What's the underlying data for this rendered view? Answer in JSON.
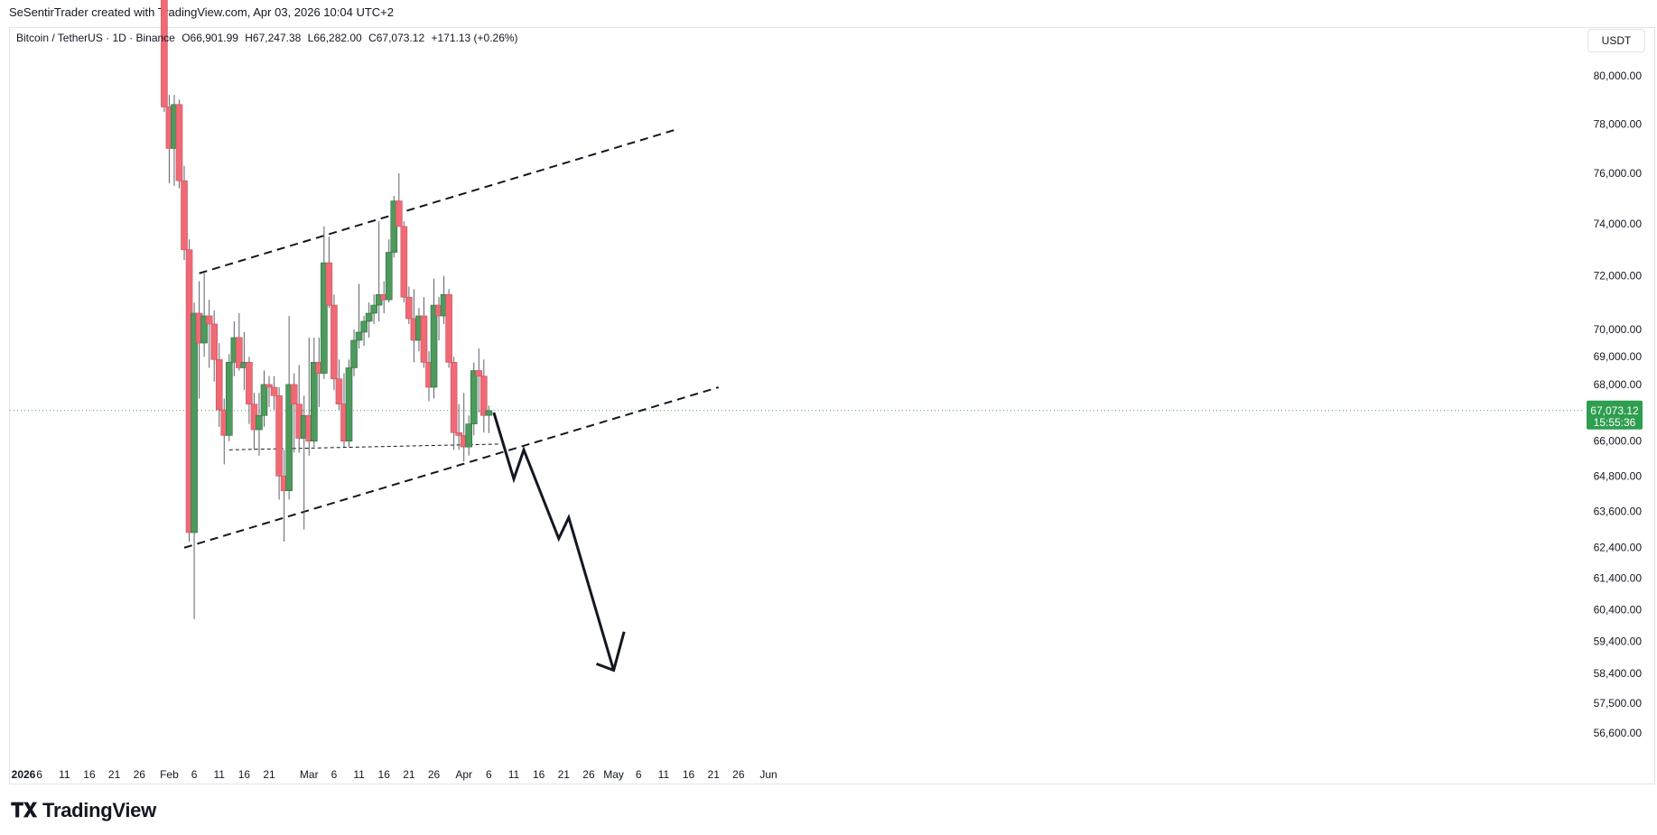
{
  "header": {
    "credit": "SeSentirTrader created with TradingView.com, Apr 03, 2026 10:04 UTC+2"
  },
  "legend": {
    "symbol": "Bitcoin / TetherUS · 1D · Binance",
    "open": "O66,901.99",
    "high": "H67,247.38",
    "low": "L66,282.00",
    "close": "C67,073.12",
    "change": "+171.13 (+0.26%)"
  },
  "currency": "USDT",
  "price_badge": {
    "price": "67,073.12",
    "countdown": "15:55:36"
  },
  "colors": {
    "up": "#4c9a5c",
    "down": "#f06a76",
    "wick": "#5d606b",
    "badge": "#2e9e4f"
  },
  "footer": {
    "logo": "TradingView"
  },
  "chart_data": {
    "type": "candlestick",
    "y_scale": "log",
    "y_range": [
      55800,
      84000
    ],
    "y_ticks": [
      "80,000.00",
      "78,000.00",
      "76,000.00",
      "74,000.00",
      "72,000.00",
      "70,000.00",
      "69,000.00",
      "68,000.00",
      "66,000.00",
      "64,800.00",
      "63,600.00",
      "62,400.00",
      "61,400.00",
      "60,400.00",
      "59,400.00",
      "58,400.00",
      "57,500.00",
      "56,600.00"
    ],
    "x_ticks": [
      {
        "label": "2026",
        "date": "2026-01-01"
      },
      {
        "label": "6",
        "date": "2026-01-06"
      },
      {
        "label": "11",
        "date": "2026-01-11"
      },
      {
        "label": "16",
        "date": "2026-01-16"
      },
      {
        "label": "21",
        "date": "2026-01-21"
      },
      {
        "label": "26",
        "date": "2026-01-26"
      },
      {
        "label": "Feb",
        "date": "2026-02-01"
      },
      {
        "label": "6",
        "date": "2026-02-06"
      },
      {
        "label": "11",
        "date": "2026-02-11"
      },
      {
        "label": "16",
        "date": "2026-02-16"
      },
      {
        "label": "21",
        "date": "2026-02-21"
      },
      {
        "label": "Mar",
        "date": "2026-03-01"
      },
      {
        "label": "6",
        "date": "2026-03-06"
      },
      {
        "label": "11",
        "date": "2026-03-11"
      },
      {
        "label": "16",
        "date": "2026-03-16"
      },
      {
        "label": "21",
        "date": "2026-03-21"
      },
      {
        "label": "26",
        "date": "2026-03-26"
      },
      {
        "label": "Apr",
        "date": "2026-04-01"
      },
      {
        "label": "6",
        "date": "2026-04-06"
      },
      {
        "label": "11",
        "date": "2026-04-11"
      },
      {
        "label": "16",
        "date": "2026-04-16"
      },
      {
        "label": "21",
        "date": "2026-04-21"
      },
      {
        "label": "26",
        "date": "2026-04-26"
      },
      {
        "label": "May",
        "date": "2026-05-01"
      },
      {
        "label": "6",
        "date": "2026-05-06"
      },
      {
        "label": "11",
        "date": "2026-05-11"
      },
      {
        "label": "16",
        "date": "2026-05-16"
      },
      {
        "label": "21",
        "date": "2026-05-21"
      },
      {
        "label": "26",
        "date": "2026-05-26"
      },
      {
        "label": "Jun",
        "date": "2026-06-01"
      }
    ],
    "candles": [
      {
        "date": "2026-01-31",
        "o": 84500,
        "h": 85500,
        "l": 78500,
        "c": 78700
      },
      {
        "date": "2026-02-01",
        "o": 78700,
        "h": 79200,
        "l": 75600,
        "c": 77000
      },
      {
        "date": "2026-02-02",
        "o": 77000,
        "h": 79200,
        "l": 75500,
        "c": 78800
      },
      {
        "date": "2026-02-03",
        "o": 78800,
        "h": 79000,
        "l": 75400,
        "c": 75700
      },
      {
        "date": "2026-02-04",
        "o": 75700,
        "h": 76300,
        "l": 72600,
        "c": 73000
      },
      {
        "date": "2026-02-05",
        "o": 73000,
        "h": 73400,
        "l": 62600,
        "c": 62900
      },
      {
        "date": "2026-02-06",
        "o": 62900,
        "h": 71000,
        "l": 60100,
        "c": 70600
      },
      {
        "date": "2026-02-07",
        "o": 70600,
        "h": 71800,
        "l": 67500,
        "c": 69500
      },
      {
        "date": "2026-02-08",
        "o": 69500,
        "h": 72100,
        "l": 69000,
        "c": 70500
      },
      {
        "date": "2026-02-09",
        "o": 70500,
        "h": 71100,
        "l": 68600,
        "c": 70200
      },
      {
        "date": "2026-02-10",
        "o": 70200,
        "h": 70700,
        "l": 68100,
        "c": 68900
      },
      {
        "date": "2026-02-11",
        "o": 68900,
        "h": 69500,
        "l": 66500,
        "c": 67100
      },
      {
        "date": "2026-02-12",
        "o": 67100,
        "h": 67500,
        "l": 65200,
        "c": 66200
      },
      {
        "date": "2026-02-13",
        "o": 66200,
        "h": 69100,
        "l": 66000,
        "c": 68800
      },
      {
        "date": "2026-02-14",
        "o": 68800,
        "h": 70300,
        "l": 68300,
        "c": 69700
      },
      {
        "date": "2026-02-15",
        "o": 69700,
        "h": 70600,
        "l": 68500,
        "c": 68600
      },
      {
        "date": "2026-02-16",
        "o": 68600,
        "h": 69900,
        "l": 67800,
        "c": 68800
      },
      {
        "date": "2026-02-17",
        "o": 68800,
        "h": 69000,
        "l": 66600,
        "c": 67300
      },
      {
        "date": "2026-02-18",
        "o": 67300,
        "h": 67700,
        "l": 65700,
        "c": 66400
      },
      {
        "date": "2026-02-19",
        "o": 66400,
        "h": 67700,
        "l": 65500,
        "c": 66900
      },
      {
        "date": "2026-02-20",
        "o": 66900,
        "h": 68500,
        "l": 66500,
        "c": 68000
      },
      {
        "date": "2026-02-21",
        "o": 68000,
        "h": 68300,
        "l": 67200,
        "c": 67900
      },
      {
        "date": "2026-02-22",
        "o": 67900,
        "h": 68300,
        "l": 67100,
        "c": 67600
      },
      {
        "date": "2026-02-23",
        "o": 67600,
        "h": 67900,
        "l": 64000,
        "c": 64800
      },
      {
        "date": "2026-02-24",
        "o": 64800,
        "h": 65700,
        "l": 62600,
        "c": 64300
      },
      {
        "date": "2026-02-25",
        "o": 64300,
        "h": 70500,
        "l": 64000,
        "c": 68000
      },
      {
        "date": "2026-02-26",
        "o": 68000,
        "h": 68400,
        "l": 65600,
        "c": 67300
      },
      {
        "date": "2026-02-27",
        "o": 67300,
        "h": 68700,
        "l": 65600,
        "c": 66100
      },
      {
        "date": "2026-02-28",
        "o": 66100,
        "h": 67600,
        "l": 63000,
        "c": 66900
      },
      {
        "date": "2026-03-01",
        "o": 66900,
        "h": 69700,
        "l": 65500,
        "c": 66000
      },
      {
        "date": "2026-03-02",
        "o": 66000,
        "h": 69700,
        "l": 65800,
        "c": 68800
      },
      {
        "date": "2026-03-03",
        "o": 68800,
        "h": 69700,
        "l": 67200,
        "c": 68400
      },
      {
        "date": "2026-03-04",
        "o": 68400,
        "h": 73900,
        "l": 68200,
        "c": 72500
      },
      {
        "date": "2026-03-05",
        "o": 72500,
        "h": 73500,
        "l": 70800,
        "c": 70900
      },
      {
        "date": "2026-03-06",
        "o": 70900,
        "h": 71300,
        "l": 67800,
        "c": 68200
      },
      {
        "date": "2026-03-07",
        "o": 68200,
        "h": 68900,
        "l": 67100,
        "c": 67300
      },
      {
        "date": "2026-03-08",
        "o": 67300,
        "h": 68400,
        "l": 65800,
        "c": 66000
      },
      {
        "date": "2026-03-09",
        "o": 66000,
        "h": 68900,
        "l": 65800,
        "c": 68600
      },
      {
        "date": "2026-03-10",
        "o": 68600,
        "h": 70000,
        "l": 68300,
        "c": 69600
      },
      {
        "date": "2026-03-11",
        "o": 69600,
        "h": 71700,
        "l": 69300,
        "c": 69900
      },
      {
        "date": "2026-03-12",
        "o": 69900,
        "h": 70500,
        "l": 69400,
        "c": 70300
      },
      {
        "date": "2026-03-13",
        "o": 70300,
        "h": 71000,
        "l": 69700,
        "c": 70600
      },
      {
        "date": "2026-03-14",
        "o": 70600,
        "h": 71300,
        "l": 70200,
        "c": 70900
      },
      {
        "date": "2026-03-15",
        "o": 70900,
        "h": 74100,
        "l": 70300,
        "c": 71300
      },
      {
        "date": "2026-03-16",
        "o": 71300,
        "h": 71800,
        "l": 70600,
        "c": 71100
      },
      {
        "date": "2026-03-17",
        "o": 71100,
        "h": 73400,
        "l": 71000,
        "c": 72900
      },
      {
        "date": "2026-03-18",
        "o": 72900,
        "h": 75100,
        "l": 72700,
        "c": 74900
      },
      {
        "date": "2026-03-19",
        "o": 74900,
        "h": 76000,
        "l": 73900,
        "c": 73900
      },
      {
        "date": "2026-03-20",
        "o": 73900,
        "h": 74100,
        "l": 71000,
        "c": 71200
      },
      {
        "date": "2026-03-21",
        "o": 71200,
        "h": 71600,
        "l": 70200,
        "c": 70400
      },
      {
        "date": "2026-03-22",
        "o": 70400,
        "h": 71500,
        "l": 68800,
        "c": 69600
      },
      {
        "date": "2026-03-23",
        "o": 69600,
        "h": 70800,
        "l": 69200,
        "c": 70500
      },
      {
        "date": "2026-03-24",
        "o": 70500,
        "h": 71200,
        "l": 68600,
        "c": 68800
      },
      {
        "date": "2026-03-25",
        "o": 68800,
        "h": 69200,
        "l": 67400,
        "c": 67900
      },
      {
        "date": "2026-03-26",
        "o": 67900,
        "h": 71900,
        "l": 67500,
        "c": 70900
      },
      {
        "date": "2026-03-27",
        "o": 70900,
        "h": 71200,
        "l": 69600,
        "c": 70500
      },
      {
        "date": "2026-03-28",
        "o": 70500,
        "h": 72000,
        "l": 70200,
        "c": 71300
      },
      {
        "date": "2026-03-29",
        "o": 71300,
        "h": 71500,
        "l": 68600,
        "c": 68800
      },
      {
        "date": "2026-03-30",
        "o": 68800,
        "h": 69000,
        "l": 65700,
        "c": 66300
      },
      {
        "date": "2026-03-31",
        "o": 66300,
        "h": 67300,
        "l": 65700,
        "c": 66200
      },
      {
        "date": "2026-04-01",
        "o": 66200,
        "h": 67700,
        "l": 65300,
        "c": 65800
      },
      {
        "date": "2026-04-02",
        "o": 65800,
        "h": 66900,
        "l": 65500,
        "c": 66600
      },
      {
        "date": "2026-04-03",
        "o": 66600,
        "h": 68800,
        "l": 66200,
        "c": 68500
      },
      {
        "date": "2026-04-04",
        "o": 68500,
        "h": 69300,
        "l": 67000,
        "c": 68300
      },
      {
        "date": "2026-04-05",
        "o": 68300,
        "h": 68900,
        "l": 66300,
        "c": 66900
      },
      {
        "date": "2026-04-06",
        "o": 66902,
        "h": 67247,
        "l": 66282,
        "c": 67073
      }
    ],
    "drawings": {
      "channel_upper": [
        {
          "date": "2026-02-07",
          "price": 72100
        },
        {
          "date": "2026-05-14",
          "price": 77800
        }
      ],
      "channel_lower": [
        {
          "date": "2026-02-04",
          "price": 62400
        },
        {
          "date": "2026-05-22",
          "price": 67900
        }
      ],
      "support_line": [
        {
          "date": "2026-02-13",
          "price": 65700
        },
        {
          "date": "2026-04-08",
          "price": 65900
        }
      ],
      "projection_path": [
        {
          "date": "2026-04-07",
          "price": 67000
        },
        {
          "date": "2026-04-11",
          "price": 64700
        },
        {
          "date": "2026-04-13",
          "price": 65700
        },
        {
          "date": "2026-04-20",
          "price": 62700
        },
        {
          "date": "2026-04-22",
          "price": 63400
        },
        {
          "date": "2026-05-01",
          "price": 58500
        },
        {
          "date": "2026-05-01",
          "price": 58500
        },
        {
          "date": "2026-05-02",
          "price": 59700
        }
      ],
      "projection_arrow_tail": {
        "date": "2026-04-29",
        "price": 58700
      }
    },
    "last_price": 67073.12
  }
}
